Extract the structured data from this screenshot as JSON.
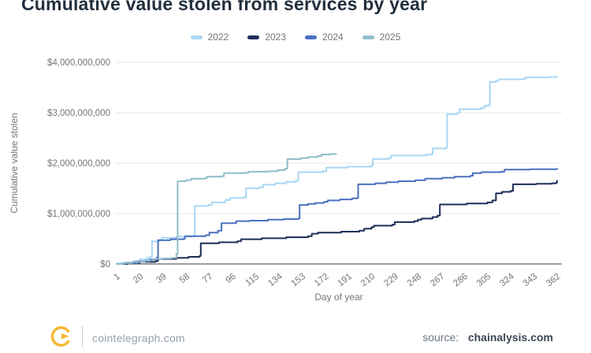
{
  "page": {
    "title": "Cumulative value stolen from services by year",
    "footer": {
      "left_site": "cointelegraph.com",
      "source_prefix": "source:",
      "source_name": "chainalysis.com",
      "logo_color": "#f5b82e"
    }
  },
  "legend": {
    "items": [
      {
        "label": "2022"
      },
      {
        "label": "2023"
      },
      {
        "label": "2024"
      },
      {
        "label": "2025"
      }
    ]
  },
  "chart_data": {
    "type": "line",
    "title": "Cumulative value stolen from services by year",
    "xlabel": "Day of year",
    "ylabel": "Cumulative value stolen",
    "unit": "USD_millions",
    "grid": true,
    "legend_position": "top",
    "xlim": [
      1,
      366
    ],
    "ylim": [
      0,
      4000
    ],
    "x_ticks": [
      1,
      20,
      39,
      58,
      77,
      96,
      115,
      134,
      153,
      172,
      191,
      210,
      229,
      248,
      267,
      286,
      305,
      324,
      343,
      362
    ],
    "y_ticks": [
      {
        "value": 0,
        "label": "$0"
      },
      {
        "value": 1000,
        "label": "$1,000,000,000"
      },
      {
        "value": 2000,
        "label": "$2,000,000,000"
      },
      {
        "value": 3000,
        "label": "$3,000,000,000"
      },
      {
        "value": 4000,
        "label": "$4,000,000,000"
      }
    ],
    "grid_color": "#e6e6e6",
    "zero_axis_color": "#9e9e9e",
    "tick_label_color": "#757575",
    "series": [
      {
        "name": "2022",
        "color": "#a9d7f5",
        "points": [
          [
            1,
            10
          ],
          [
            8,
            30
          ],
          [
            15,
            60
          ],
          [
            20,
            90
          ],
          [
            26,
            130
          ],
          [
            29,
            140
          ],
          [
            30,
            450
          ],
          [
            36,
            480
          ],
          [
            38,
            520
          ],
          [
            50,
            540
          ],
          [
            64,
            550
          ],
          [
            65,
            1150
          ],
          [
            76,
            1170
          ],
          [
            79,
            1220
          ],
          [
            90,
            1270
          ],
          [
            94,
            1310
          ],
          [
            105,
            1320
          ],
          [
            107,
            1500
          ],
          [
            118,
            1520
          ],
          [
            121,
            1570
          ],
          [
            131,
            1600
          ],
          [
            140,
            1630
          ],
          [
            148,
            1650
          ],
          [
            150,
            1820
          ],
          [
            170,
            1840
          ],
          [
            173,
            1910
          ],
          [
            190,
            1930
          ],
          [
            210,
            1950
          ],
          [
            211,
            2080
          ],
          [
            224,
            2100
          ],
          [
            226,
            2150
          ],
          [
            255,
            2170
          ],
          [
            260,
            2290
          ],
          [
            271,
            2310
          ],
          [
            272,
            2970
          ],
          [
            280,
            2990
          ],
          [
            282,
            3070
          ],
          [
            300,
            3100
          ],
          [
            303,
            3140
          ],
          [
            306,
            3150
          ],
          [
            307,
            3610
          ],
          [
            312,
            3630
          ],
          [
            314,
            3660
          ],
          [
            334,
            3670
          ],
          [
            336,
            3700
          ],
          [
            356,
            3710
          ],
          [
            362,
            3720
          ]
        ]
      },
      {
        "name": "2023",
        "color": "#1c2d57",
        "points": [
          [
            1,
            0
          ],
          [
            10,
            20
          ],
          [
            20,
            40
          ],
          [
            33,
            60
          ],
          [
            35,
            100
          ],
          [
            50,
            120
          ],
          [
            60,
            140
          ],
          [
            69,
            160
          ],
          [
            70,
            410
          ],
          [
            85,
            430
          ],
          [
            100,
            450
          ],
          [
            103,
            490
          ],
          [
            120,
            510
          ],
          [
            140,
            530
          ],
          [
            158,
            550
          ],
          [
            161,
            600
          ],
          [
            166,
            620
          ],
          [
            185,
            640
          ],
          [
            200,
            660
          ],
          [
            204,
            700
          ],
          [
            210,
            730
          ],
          [
            212,
            760
          ],
          [
            227,
            780
          ],
          [
            229,
            830
          ],
          [
            245,
            850
          ],
          [
            248,
            880
          ],
          [
            251,
            900
          ],
          [
            260,
            930
          ],
          [
            264,
            960
          ],
          [
            266,
            1180
          ],
          [
            288,
            1200
          ],
          [
            305,
            1220
          ],
          [
            309,
            1260
          ],
          [
            312,
            1400
          ],
          [
            317,
            1430
          ],
          [
            324,
            1450
          ],
          [
            326,
            1580
          ],
          [
            345,
            1590
          ],
          [
            358,
            1600
          ],
          [
            361,
            1610
          ],
          [
            362,
            1650
          ]
        ]
      },
      {
        "name": "2024",
        "color": "#4a70c2",
        "points": [
          [
            1,
            0
          ],
          [
            8,
            20
          ],
          [
            18,
            50
          ],
          [
            28,
            90
          ],
          [
            34,
            130
          ],
          [
            35,
            470
          ],
          [
            45,
            490
          ],
          [
            56,
            500
          ],
          [
            57,
            550
          ],
          [
            74,
            570
          ],
          [
            77,
            620
          ],
          [
            84,
            660
          ],
          [
            87,
            810
          ],
          [
            99,
            850
          ],
          [
            110,
            860
          ],
          [
            125,
            880
          ],
          [
            138,
            890
          ],
          [
            150,
            900
          ],
          [
            151,
            1170
          ],
          [
            158,
            1190
          ],
          [
            164,
            1210
          ],
          [
            171,
            1230
          ],
          [
            174,
            1260
          ],
          [
            184,
            1280
          ],
          [
            194,
            1300
          ],
          [
            198,
            1310
          ],
          [
            199,
            1580
          ],
          [
            213,
            1600
          ],
          [
            222,
            1620
          ],
          [
            232,
            1640
          ],
          [
            246,
            1660
          ],
          [
            254,
            1690
          ],
          [
            268,
            1710
          ],
          [
            278,
            1730
          ],
          [
            291,
            1750
          ],
          [
            293,
            1800
          ],
          [
            300,
            1820
          ],
          [
            316,
            1830
          ],
          [
            319,
            1870
          ],
          [
            340,
            1880
          ],
          [
            362,
            1890
          ]
        ]
      },
      {
        "name": "2025",
        "color": "#91bdcd",
        "points": [
          [
            1,
            0
          ],
          [
            6,
            20
          ],
          [
            14,
            40
          ],
          [
            24,
            70
          ],
          [
            31,
            100
          ],
          [
            38,
            110
          ],
          [
            46,
            120
          ],
          [
            50,
            200
          ],
          [
            51,
            1640
          ],
          [
            58,
            1660
          ],
          [
            62,
            1690
          ],
          [
            73,
            1700
          ],
          [
            75,
            1730
          ],
          [
            87,
            1740
          ],
          [
            89,
            1800
          ],
          [
            106,
            1810
          ],
          [
            109,
            1830
          ],
          [
            126,
            1840
          ],
          [
            133,
            1860
          ],
          [
            139,
            1890
          ],
          [
            141,
            2080
          ],
          [
            152,
            2100
          ],
          [
            158,
            2120
          ],
          [
            166,
            2140
          ],
          [
            169,
            2170
          ],
          [
            176,
            2180
          ],
          [
            181,
            2180
          ]
        ]
      }
    ]
  }
}
